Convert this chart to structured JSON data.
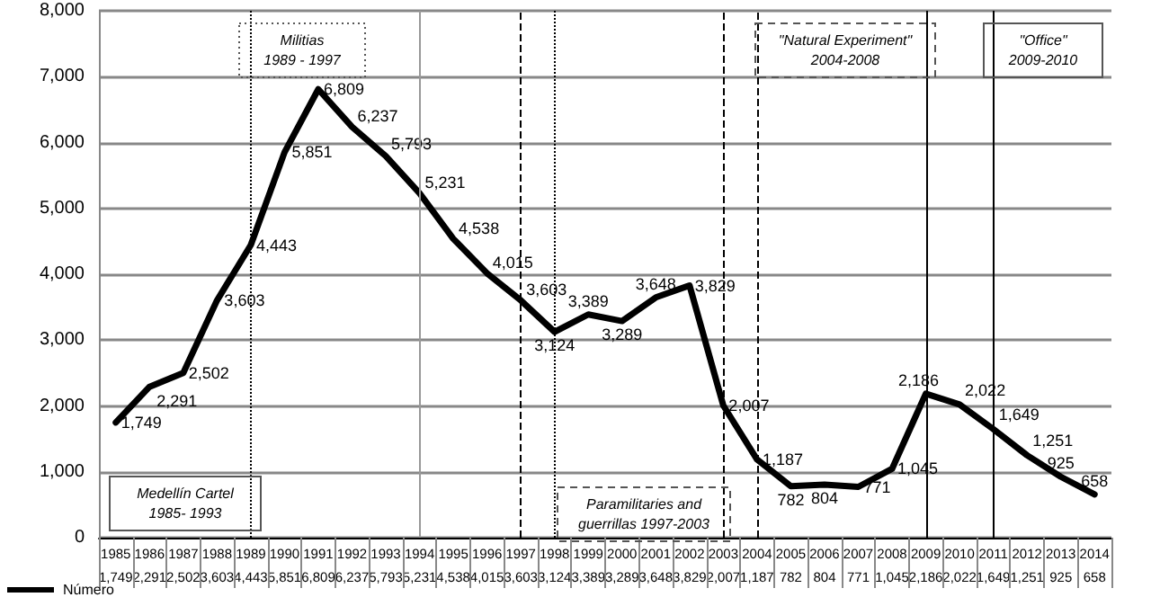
{
  "chart_data": {
    "type": "line",
    "categories": [
      "1985",
      "1986",
      "1987",
      "1988",
      "1989",
      "1990",
      "1991",
      "1992",
      "1993",
      "1994",
      "1995",
      "1996",
      "1997",
      "1998",
      "1999",
      "2000",
      "2001",
      "2002",
      "2003",
      "2004",
      "2005",
      "2006",
      "2007",
      "2008",
      "2009",
      "2010",
      "2011",
      "2012",
      "2013",
      "2014"
    ],
    "series": [
      {
        "name": "Número",
        "color": "#000000",
        "values": [
          1749,
          2291,
          2502,
          3603,
          4443,
          5851,
          6809,
          6237,
          5793,
          5231,
          4538,
          4015,
          3603,
          3124,
          3389,
          3289,
          3648,
          3829,
          2007,
          1187,
          782,
          804,
          771,
          1045,
          2186,
          2022,
          1649,
          1251,
          925,
          658
        ],
        "value_labels": [
          "1,749",
          "2,291",
          "2,502",
          "3,603",
          "4,443",
          "5,851",
          "6,809",
          "6,237",
          "5,793",
          "5,231",
          "4,538",
          "4,015",
          "3,603",
          "3,124",
          "3,389",
          "3,289",
          "3,648",
          "3,829",
          "2,007",
          "1,187",
          "782",
          "804",
          "771",
          "1,045",
          "2,186",
          "2,022",
          "1,649",
          "1,251",
          "925",
          "658"
        ]
      }
    ],
    "ylim": [
      0,
      8000
    ],
    "yticks": [
      0,
      {
        "value": 1000,
        "label": "1,000"
      },
      {
        "value": 2000,
        "label": "2,000"
      },
      {
        "value": 3000,
        "label": "3,000"
      },
      {
        "value": 4000,
        "label": "4,000"
      },
      {
        "value": 5000,
        "label": "5,000"
      },
      {
        "value": 6000,
        "label": "6,000"
      },
      {
        "value": 7000,
        "label": "7,000"
      },
      {
        "value": 8000,
        "label": "8,000"
      }
    ],
    "grid": "y",
    "legend": "bottom left",
    "marker": "none",
    "line_style": "solid",
    "ref_lines": [
      {
        "axis": "x",
        "value": "1989",
        "line_style": "dotted",
        "color": "#000000"
      },
      {
        "axis": "x",
        "value": "1994",
        "line_style": "solid",
        "color": "#999999"
      },
      {
        "axis": "x",
        "value": "1997",
        "line_style": "dashed",
        "color": "#000000"
      },
      {
        "axis": "x",
        "value": "1998",
        "line_style": "dotted",
        "color": "#000000"
      },
      {
        "axis": "x",
        "value": "2003",
        "line_style": "dashed",
        "color": "#000000"
      },
      {
        "axis": "x",
        "value": "2004",
        "line_style": "dashed",
        "color": "#000000"
      },
      {
        "axis": "x",
        "value": "2009",
        "line_style": "solid",
        "color": "#000000"
      },
      {
        "axis": "x",
        "value": "2011",
        "line_style": "solid",
        "color": "#000000"
      }
    ],
    "annotations": [
      "Medellín Cartel\n1985- 1993",
      "Militias\n1989 - 1997",
      "Paramilitaries and\nguerrillas 1997-2003",
      "\"Natural Experiment\"\n2004-2008",
      "\"Office\"\n2009-2010"
    ]
  }
}
